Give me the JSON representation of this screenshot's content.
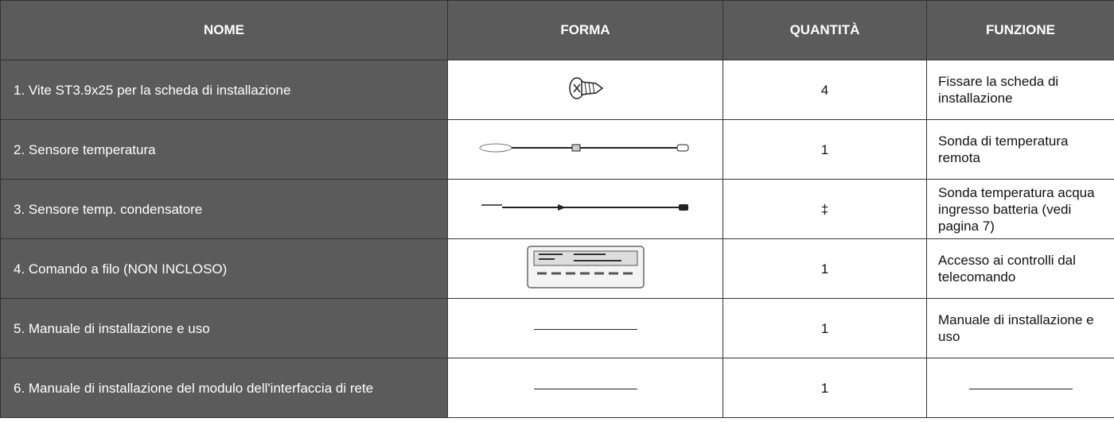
{
  "table": {
    "headers": [
      "NOME",
      "FORMA",
      "QUANTITÀ",
      "FUNZIONE"
    ],
    "rows": [
      {
        "nome": "1. Vite ST3.9x25 per la scheda di installazione",
        "quantita": 4,
        "funzione": "Fissare la scheda di installazione"
      },
      {
        "nome": "2. Sensore temperatura",
        "quantita": 1,
        "funzione": "Sonda di temperatura remota"
      },
      {
        "nome": "3. Sensore temp. condensatore",
        "quantita": "‡",
        "funzione": "Sonda temperatura acqua ingresso batteria (vedi pagina 7)"
      },
      {
        "nome": "4. Comando a filo (NON INCLOSO)",
        "quantita": 1,
        "funzione": "Accesso ai controlli dal telecomando"
      },
      {
        "nome": "5. Manuale di installazione e uso",
        "quantita": 1,
        "funzione": "Manuale di installazione e uso"
      },
      {
        "nome": "6. Manuale di installazione del modulo dell'interfaccia di rete",
        "quantita": 1
      }
    ]
  }
}
